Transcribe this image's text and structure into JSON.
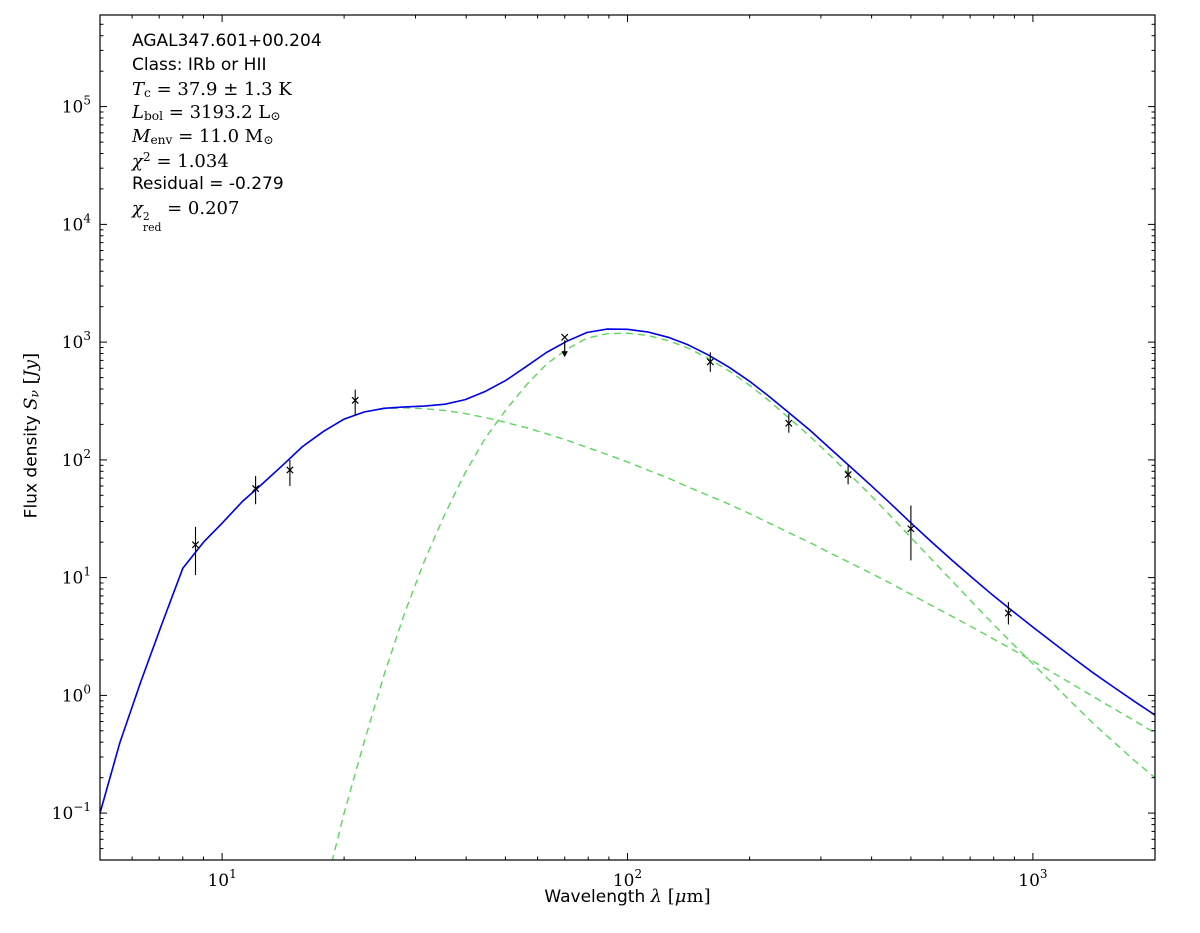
{
  "figure": {
    "background": "#ffffff",
    "axis_color": "#000000"
  },
  "chart_data": {
    "type": "line",
    "title": "",
    "x_scale": "log",
    "y_scale": "log",
    "xlim": [
      5,
      2000
    ],
    "ylim": [
      0.04,
      600000
    ],
    "grid": false,
    "legend": null,
    "x_major_tick_exponents": [
      1,
      2,
      3
    ],
    "y_major_tick_exponents": [
      -1,
      0,
      1,
      2,
      3,
      4,
      5
    ],
    "xlabel_segments": [
      {
        "t": "Wavelength ",
        "font": "sans"
      },
      {
        "t": "λ",
        "style": "i",
        "font": "math"
      },
      {
        "t": " [",
        "font": "math"
      },
      {
        "t": "μ",
        "style": "i",
        "font": "math"
      },
      {
        "t": "m",
        "font": "math"
      },
      {
        "t": "]",
        "font": "math"
      }
    ],
    "ylabel_segments": [
      {
        "t": "Flux density ",
        "font": "sans"
      },
      {
        "t": "S",
        "style": "i",
        "font": "math"
      },
      {
        "t": "ν",
        "style": "sub-i",
        "font": "math"
      },
      {
        "t": " [",
        "font": "math"
      },
      {
        "t": "Jy",
        "style": "i",
        "font": "math"
      },
      {
        "t": "]",
        "font": "math"
      }
    ],
    "annotation_lines": [
      {
        "font": "sans",
        "segments": [
          {
            "t": "AGAL347.601+00.204"
          }
        ]
      },
      {
        "font": "sans",
        "segments": [
          {
            "t": "Class: IRb or HII"
          }
        ]
      },
      {
        "font": "math",
        "segments": [
          {
            "t": "T",
            "style": "i"
          },
          {
            "t": "c",
            "style": "sub"
          },
          {
            "t": " = 37.9 ± 1.3 K"
          }
        ]
      },
      {
        "font": "math",
        "segments": [
          {
            "t": "L",
            "style": "i"
          },
          {
            "t": "bol",
            "style": "sub"
          },
          {
            "t": " = 3193.2 L"
          },
          {
            "t": "⊙",
            "style": "sub"
          }
        ]
      },
      {
        "font": "math",
        "segments": [
          {
            "t": "M",
            "style": "i"
          },
          {
            "t": "env",
            "style": "sub"
          },
          {
            "t": " = 11.0 M"
          },
          {
            "t": "⊙",
            "style": "sub"
          }
        ]
      },
      {
        "font": "math",
        "segments": [
          {
            "t": "χ",
            "style": "i"
          },
          {
            "t": "2",
            "style": "sup"
          },
          {
            "t": " = 1.034"
          }
        ]
      },
      {
        "font": "sans",
        "segments": [
          {
            "t": "Residual = -0.279"
          }
        ]
      },
      {
        "font": "math",
        "segments": [
          {
            "t": "χ",
            "style": "i"
          },
          {
            "stack": [
              "2",
              "red"
            ]
          },
          {
            "t": " = 0.207"
          }
        ]
      }
    ],
    "series": [
      {
        "name": "warm-component-dashed",
        "color": "#5cd65c",
        "dash": "7,5",
        "width": 1.4,
        "x": [
          5,
          5.6,
          6.3,
          7.1,
          8,
          9,
          10,
          11.2,
          12.6,
          14.1,
          15.8,
          17.8,
          20,
          22.4,
          25.1,
          28.2,
          31.6,
          35.5,
          39.8,
          44.7,
          50.1,
          56.2,
          63.1,
          70.8,
          79.4,
          89.1,
          100,
          112,
          126,
          141,
          158,
          178,
          200,
          224,
          251,
          282,
          316,
          355,
          398,
          447,
          501,
          562,
          631,
          708,
          794,
          891,
          1000,
          1122,
          1259,
          1413,
          1585,
          1778,
          2000
        ],
        "y": [
          0.1,
          0.4,
          1.3,
          4.0,
          12,
          20,
          29,
          44,
          63,
          90,
          130,
          175,
          222,
          255,
          272,
          277,
          272,
          262,
          247,
          228,
          208,
          188,
          167,
          147,
          128,
          111,
          96,
          82,
          70,
          59,
          50,
          42,
          35,
          29,
          24,
          19.8,
          16.2,
          13.3,
          10.9,
          8.9,
          7.2,
          5.8,
          4.7,
          3.8,
          3.05,
          2.45,
          1.95,
          1.55,
          1.23,
          0.97,
          0.77,
          0.61,
          0.48
        ]
      },
      {
        "name": "cold-envelope-component-dashed",
        "color": "#5cd65c",
        "dash": "7,5",
        "width": 1.4,
        "x": [
          16,
          17.8,
          20,
          22.4,
          25.1,
          28.2,
          31.6,
          35.5,
          39.8,
          44.7,
          50.1,
          56.2,
          63.1,
          70.8,
          79.4,
          89.1,
          100,
          112,
          126,
          141,
          158,
          178,
          200,
          224,
          251,
          282,
          316,
          355,
          398,
          447,
          501,
          562,
          631,
          708,
          794,
          891,
          1000,
          1122,
          1259,
          1413,
          1585,
          1778,
          2000
        ],
        "y": [
          0.005,
          0.02,
          0.1,
          0.4,
          1.5,
          5,
          14,
          35,
          78,
          155,
          265,
          430,
          650,
          870,
          1080,
          1180,
          1190,
          1140,
          1030,
          890,
          730,
          570,
          430,
          315,
          225,
          158,
          109,
          74,
          50,
          33,
          21.8,
          14.3,
          9.4,
          6.2,
          4.1,
          2.75,
          1.85,
          1.25,
          0.84,
          0.57,
          0.4,
          0.28,
          0.2
        ]
      },
      {
        "name": "total-model-fit",
        "color": "#0000e6",
        "dash": null,
        "width": 1.6,
        "x": [
          5,
          5.6,
          6.3,
          7.1,
          8,
          9,
          10,
          11.2,
          12.6,
          14.1,
          15.8,
          17.8,
          20,
          22.4,
          25.1,
          28.2,
          31.6,
          35.5,
          39.8,
          44.7,
          50.1,
          56.2,
          63.1,
          70.8,
          79.4,
          89.1,
          100,
          112,
          126,
          141,
          158,
          178,
          200,
          224,
          251,
          282,
          316,
          355,
          398,
          447,
          501,
          562,
          631,
          708,
          794,
          891,
          1000,
          1122,
          1259,
          1413,
          1585,
          1778,
          2000
        ],
        "y": [
          0.1,
          0.4,
          1.3,
          4.0,
          12,
          20,
          29,
          44,
          63,
          90,
          130,
          175,
          222,
          255,
          274,
          282,
          286,
          297,
          325,
          383,
          473,
          618,
          817,
          1017,
          1208,
          1291,
          1286,
          1222,
          1100,
          949,
          780,
          612,
          465,
          344,
          249,
          178,
          125,
          87,
          61,
          42,
          29,
          20.1,
          14.1,
          10,
          7.15,
          5.2,
          3.8,
          2.8,
          2.07,
          1.54,
          1.17,
          0.89,
          0.68
        ]
      }
    ],
    "data_points": {
      "marker": "x",
      "color": "#000000",
      "points": [
        {
          "x": 8.6,
          "y": 19,
          "lo": 10.5,
          "hi": 27
        },
        {
          "x": 12.1,
          "y": 57,
          "lo": 42,
          "hi": 73
        },
        {
          "x": 14.7,
          "y": 82,
          "lo": 60,
          "hi": 100
        },
        {
          "x": 21.3,
          "y": 320,
          "lo": 240,
          "hi": 395
        },
        {
          "x": 70,
          "y": 1100,
          "upper_limit": true
        },
        {
          "x": 160,
          "y": 680,
          "lo": 560,
          "hi": 820
        },
        {
          "x": 250,
          "y": 205,
          "lo": 170,
          "hi": 245
        },
        {
          "x": 350,
          "y": 75,
          "lo": 62,
          "hi": 90
        },
        {
          "x": 500,
          "y": 26,
          "lo": 14,
          "hi": 41
        },
        {
          "x": 870,
          "y": 5.0,
          "lo": 4.0,
          "hi": 6.2
        }
      ]
    }
  }
}
